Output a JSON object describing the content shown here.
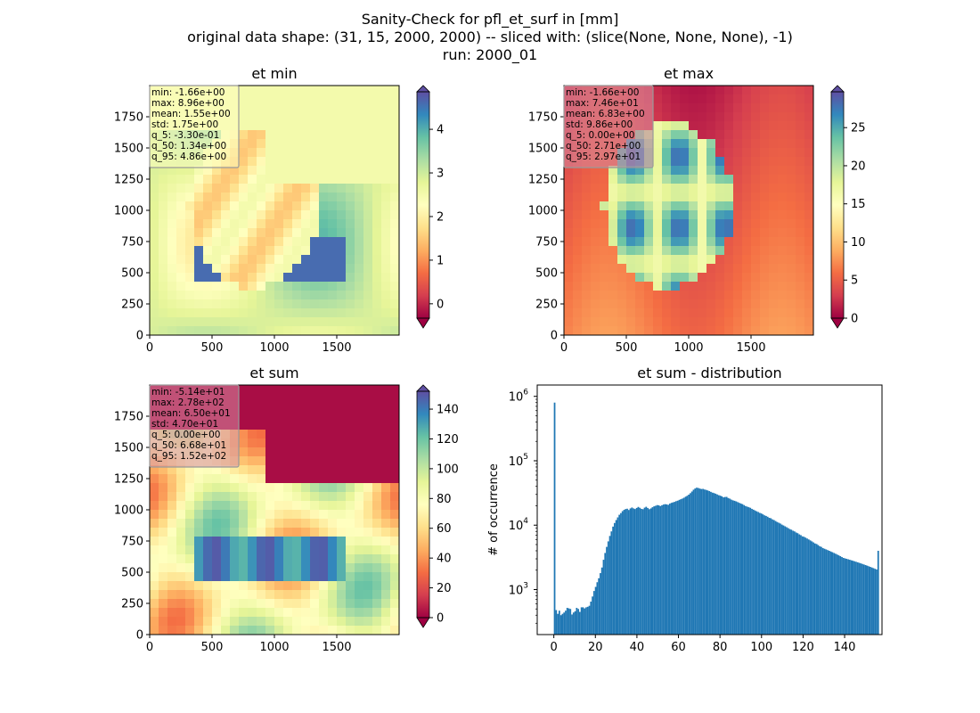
{
  "suptitle": {
    "line1": "Sanity-Check for pfl_et_surf in [mm]",
    "line2": "original data shape: (31, 15, 2000, 2000) -- sliced with: (slice(None, None, None), -1)",
    "line3": "run: 2000_01"
  },
  "chart_data": [
    {
      "type": "heatmap",
      "title": "et min",
      "colormap": "Spectral",
      "color_range": [
        -0.33,
        4.86
      ],
      "xlim": [
        0,
        2000
      ],
      "ylim": [
        0,
        2000
      ],
      "xticks": [
        0,
        500,
        1000,
        1500
      ],
      "yticks": [
        0,
        250,
        500,
        750,
        1000,
        1250,
        1500,
        1750
      ],
      "colorbar_ticks": [
        0,
        1,
        2,
        3,
        4
      ],
      "colorbar_extend": "both",
      "stats_box": [
        "min: -1.66e+00",
        "max: 8.96e+00",
        "mean: 1.55e+00",
        "std: 1.75e+00",
        "q_5: -3.30e-01",
        "q_50: 1.34e+00",
        "q_95: 4.86e+00"
      ],
      "stats_box_color": "#fdfdc0",
      "background_level": 0.9
    },
    {
      "type": "heatmap",
      "title": "et max",
      "colormap": "Spectral",
      "color_range": [
        0,
        29.7
      ],
      "xlim": [
        0,
        2000
      ],
      "ylim": [
        0,
        2000
      ],
      "xticks": [
        0,
        500,
        1000,
        1500
      ],
      "yticks": [
        0,
        250,
        500,
        750,
        1000,
        1250,
        1500,
        1750
      ],
      "colorbar_ticks": [
        0,
        5,
        10,
        15,
        20,
        25
      ],
      "colorbar_extend": "both",
      "stats_box": [
        "min: -1.66e+00",
        "max: 7.46e+01",
        "mean: 6.83e+00",
        "std: 9.86e+00",
        "q_5: 0.00e+00",
        "q_50: 2.71e+00",
        "q_95: 2.97e+01"
      ],
      "stats_box_color": "#d58aa0",
      "background_level": 0.12
    },
    {
      "type": "heatmap",
      "title": "et sum",
      "colormap": "Spectral",
      "color_range": [
        0,
        152
      ],
      "xlim": [
        0,
        2000
      ],
      "ylim": [
        0,
        2000
      ],
      "xticks": [
        0,
        500,
        1000,
        1500
      ],
      "yticks": [
        0,
        250,
        500,
        750,
        1000,
        1250,
        1500,
        1750
      ],
      "colorbar_ticks": [
        0,
        20,
        40,
        60,
        80,
        100,
        120,
        140
      ],
      "colorbar_extend": "both",
      "stats_box": [
        "min: -5.14e+01",
        "max: 2.78e+02",
        "mean: 6.50e+01",
        "std: 4.70e+01",
        "q_5: 0.00e+00",
        "q_50: 6.68e+01",
        "q_95: 1.52e+02"
      ],
      "stats_box_color": "#d58aa0",
      "background_level": 0.6
    },
    {
      "type": "bar",
      "title": "et sum - distribution",
      "xlabel": "",
      "ylabel": "# of occurrence",
      "yscale": "log",
      "xlim": [
        -8,
        158
      ],
      "ylim": [
        200,
        1500000
      ],
      "xticks": [
        0,
        20,
        40,
        60,
        80,
        100,
        120,
        140
      ],
      "yticks": [
        1000,
        10000,
        100000,
        1000000
      ],
      "ytick_labels": [
        {
          "base": "10",
          "exp": "3"
        },
        {
          "base": "10",
          "exp": "4"
        },
        {
          "base": "10",
          "exp": "5"
        },
        {
          "base": "10",
          "exp": "6"
        }
      ],
      "bar_color": "#1f77b4",
      "bin_start": 0,
      "bin_width": 0.76,
      "values": [
        800000,
        480,
        420,
        470,
        400,
        420,
        440,
        470,
        520,
        510,
        500,
        410,
        440,
        460,
        520,
        500,
        450,
        530,
        530,
        510,
        530,
        540,
        560,
        650,
        780,
        950,
        1100,
        1300,
        1500,
        1800,
        2200,
        2900,
        3700,
        4600,
        5600,
        6800,
        8000,
        9500,
        10800,
        12000,
        13200,
        14500,
        15400,
        16500,
        17300,
        17800,
        18000,
        17200,
        18200,
        18800,
        18200,
        17800,
        18500,
        19200,
        18600,
        17900,
        17700,
        18700,
        19300,
        18500,
        17700,
        18200,
        19000,
        19600,
        20000,
        20500,
        20300,
        19800,
        20400,
        20900,
        21200,
        21000,
        20700,
        21600,
        22200,
        22600,
        23000,
        23600,
        24000,
        24700,
        25300,
        25900,
        26700,
        27700,
        28600,
        29800,
        31400,
        33300,
        35500,
        37100,
        38200,
        37800,
        37000,
        36400,
        36600,
        35800,
        35300,
        34600,
        33800,
        32900,
        32000,
        31500,
        30800,
        30000,
        29200,
        28700,
        28000,
        27000,
        27400,
        27500,
        26400,
        25800,
        24900,
        24300,
        23900,
        23400,
        22800,
        22200,
        21700,
        21200,
        20500,
        19800,
        19400,
        19000,
        18600,
        17900,
        17400,
        16900,
        16400,
        16000,
        15500,
        15200,
        14700,
        14200,
        13900,
        13500,
        13000,
        12800,
        12300,
        12000,
        11600,
        11200,
        10900,
        10600,
        10200,
        9900,
        9600,
        9300,
        9000,
        8700,
        8500,
        8200,
        8000,
        7700,
        7500,
        7200,
        7000,
        6700,
        6600,
        6400,
        6200,
        6000,
        5800,
        5600,
        5400,
        5200,
        5100,
        4900,
        4700,
        4600,
        4400,
        4300,
        4200,
        4100,
        4000,
        3900,
        3800,
        3700,
        3600,
        3500,
        3400,
        3300,
        3200,
        3100,
        3050,
        3000,
        2950,
        2900,
        2850,
        2800,
        2750,
        2700,
        2650,
        2600,
        2550,
        2500,
        2450,
        2400,
        2350,
        2300,
        2250,
        2200,
        2150,
        2100,
        2050,
        4000
      ]
    }
  ]
}
